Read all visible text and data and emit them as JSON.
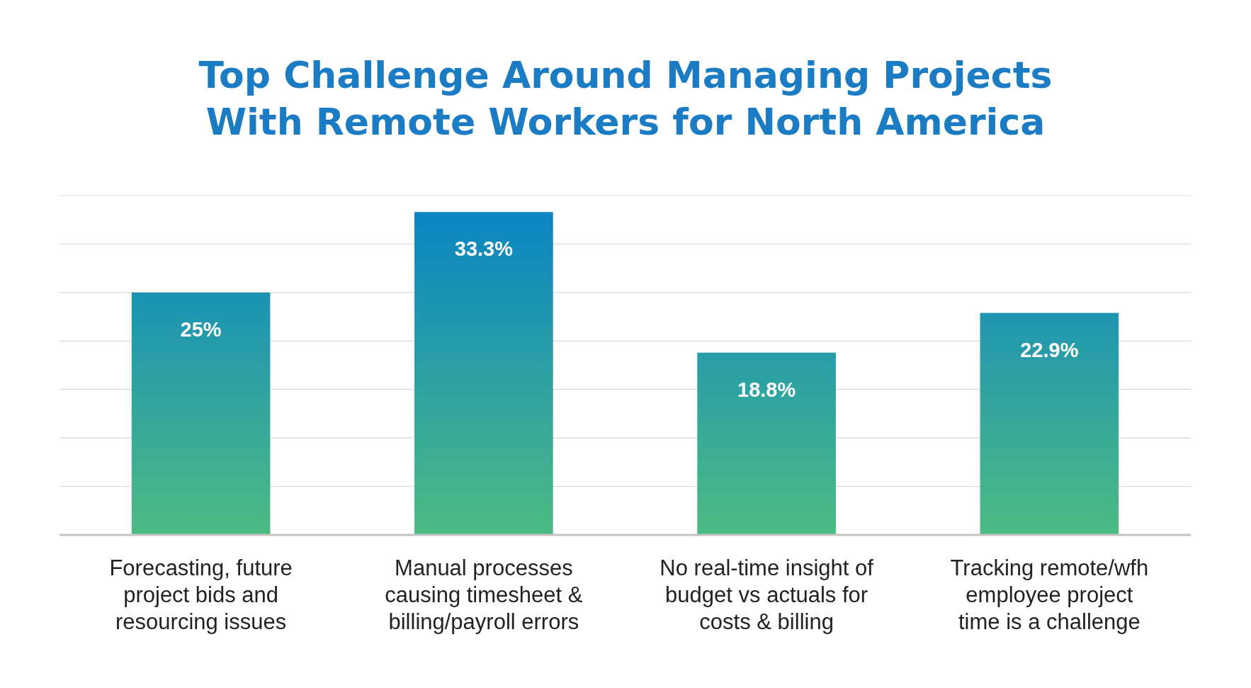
{
  "chart_data": {
    "type": "bar",
    "title": "Top Challenge Around Managing Projects\nWith Remote Workers for North America",
    "categories": [
      "Forecasting, future\nproject bids and\nresourcing issues",
      "Manual processes\ncausing timesheet &\nbilling/payroll errors",
      "No real-time insight of\nbudget vs actuals for\ncosts & billing",
      "Tracking remote/wfh\nemployee project\ntime is a challenge"
    ],
    "values": [
      25,
      33.3,
      18.8,
      22.9
    ],
    "value_labels": [
      "25%",
      "33.3%",
      "18.8%",
      "22.9%"
    ],
    "color": "#2a9fa6",
    "ylim": [
      0,
      35
    ],
    "yticks": [
      {
        "value": 0,
        "label": null
      },
      {
        "value": 5,
        "label": null
      },
      {
        "value": 10,
        "label": null
      },
      {
        "value": 15,
        "label": null
      },
      {
        "value": 20,
        "label": null
      },
      {
        "value": 25,
        "label": null
      },
      {
        "value": 30,
        "label": null
      },
      {
        "value": 35,
        "label": null
      }
    ],
    "tick_labels": "x",
    "grid": "y"
  }
}
